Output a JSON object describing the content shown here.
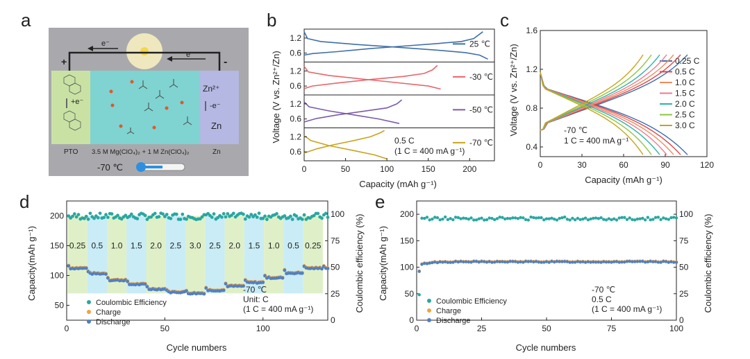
{
  "panels": {
    "a": {
      "letter": "a",
      "plus": "+",
      "minus": "-",
      "electron_top_left": "e⁻",
      "electron_top_right": "e⁻",
      "electron_left": "+e⁻",
      "electron_right": "-e⁻",
      "zn_ion": "Zn²⁺",
      "zn": "Zn",
      "label_pto": "PTO",
      "label_electrolyte": "3.5 M Mg(ClO₄)₂ + 1 M Zn(ClO₄)₂",
      "label_zn": "Zn",
      "temperature": "-70 ℃"
    },
    "b": {
      "letter": "b"
    },
    "c": {
      "letter": "c"
    },
    "d": {
      "letter": "d"
    },
    "e": {
      "letter": "e"
    }
  },
  "chart_data": [
    {
      "id": "b",
      "type": "line",
      "xlabel": "Capacity (mAh g⁻¹)",
      "ylabel": "Voltage (V vs. Zn²⁺/Zn)",
      "xlim": [
        0,
        230
      ],
      "xticks": [
        0,
        50,
        100,
        150,
        200
      ],
      "yticks": [
        "1.2",
        "0.6"
      ],
      "note_lines": [
        "0.5 C",
        "(1 C = 400 mA g⁻¹)"
      ],
      "series": [
        {
          "name": "25 ℃",
          "color": "#3e6fa8",
          "charge": [
            [
              0,
              0.52
            ],
            [
              10,
              0.58
            ],
            [
              40,
              0.66
            ],
            [
              80,
              0.78
            ],
            [
              120,
              0.88
            ],
            [
              160,
              0.98
            ],
            [
              190,
              1.06
            ],
            [
              205,
              1.18
            ],
            [
              216,
              1.45
            ]
          ],
          "discharge": [
            [
              0,
              1.45
            ],
            [
              4,
              1.18
            ],
            [
              20,
              1.06
            ],
            [
              60,
              0.95
            ],
            [
              110,
              0.84
            ],
            [
              160,
              0.72
            ],
            [
              195,
              0.62
            ],
            [
              212,
              0.52
            ],
            [
              222,
              0.36
            ]
          ]
        },
        {
          "name": "-30 ℃",
          "color": "#e8646a",
          "charge": [
            [
              0,
              0.5
            ],
            [
              10,
              0.6
            ],
            [
              40,
              0.72
            ],
            [
              80,
              0.86
            ],
            [
              120,
              0.98
            ],
            [
              145,
              1.1
            ],
            [
              155,
              1.24
            ],
            [
              161,
              1.42
            ]
          ],
          "discharge": [
            [
              0,
              1.38
            ],
            [
              5,
              1.16
            ],
            [
              30,
              1.02
            ],
            [
              70,
              0.88
            ],
            [
              110,
              0.74
            ],
            [
              150,
              0.6
            ],
            [
              165,
              0.48
            ]
          ]
        },
        {
          "name": "-50 ℃",
          "color": "#7a5aaa",
          "charge": [
            [
              0,
              0.48
            ],
            [
              15,
              0.62
            ],
            [
              40,
              0.76
            ],
            [
              70,
              0.9
            ],
            [
              100,
              1.04
            ],
            [
              112,
              1.2
            ],
            [
              118,
              1.36
            ]
          ],
          "discharge": [
            [
              0,
              1.28
            ],
            [
              6,
              1.08
            ],
            [
              30,
              0.92
            ],
            [
              60,
              0.76
            ],
            [
              90,
              0.6
            ],
            [
              115,
              0.42
            ]
          ]
        },
        {
          "name": "-70 ℃",
          "color": "#c9a21a",
          "charge": [
            [
              0,
              0.55
            ],
            [
              15,
              0.72
            ],
            [
              35,
              0.88
            ],
            [
              60,
              1.05
            ],
            [
              80,
              1.2
            ],
            [
              92,
              1.36
            ],
            [
              97,
              1.45
            ]
          ],
          "discharge": [
            [
              0,
              1.25
            ],
            [
              8,
              1.05
            ],
            [
              30,
              0.85
            ],
            [
              60,
              0.65
            ],
            [
              85,
              0.48
            ],
            [
              100,
              0.32
            ]
          ]
        }
      ]
    },
    {
      "id": "c",
      "type": "line",
      "xlabel": "Capacity (mAh g⁻¹)",
      "ylabel": "Voltage (V vs. Zn²⁺/Zn)",
      "xlim": [
        0,
        120
      ],
      "ylim": [
        0.3,
        1.6
      ],
      "xticks": [
        0,
        30,
        60,
        90,
        120
      ],
      "yticks": [
        0.4,
        0.8,
        1.2,
        1.6
      ],
      "note_lines": [
        "-70 ℃",
        "1 C = 400 mA g⁻¹"
      ],
      "series": [
        {
          "name": "0.25 C",
          "color": "#3b6fb0",
          "capacity": 106
        },
        {
          "name": "0.5 C",
          "color": "#d9474b",
          "capacity": 101
        },
        {
          "name": "1.0 C",
          "color": "#f08a5d",
          "capacity": 96
        },
        {
          "name": "1.5 C",
          "color": "#f27a8c",
          "capacity": 91
        },
        {
          "name": "2.0 C",
          "color": "#2bb3a8",
          "capacity": 86
        },
        {
          "name": "2.5 C",
          "color": "#8cc63f",
          "capacity": 80
        },
        {
          "name": "3.0 C",
          "color": "#c9a21a",
          "capacity": 74
        }
      ]
    },
    {
      "id": "d",
      "type": "scatter",
      "xlabel": "Cycle numbers",
      "ylabel": "Capacity(mAh g⁻¹)",
      "y2label": "Coulombic efficiency (%)",
      "xlim": [
        0,
        133
      ],
      "ylim": [
        25,
        225
      ],
      "y2lim": [
        0,
        112.5
      ],
      "xticks": [
        0,
        50,
        100
      ],
      "yticks": [
        50,
        100,
        150,
        200
      ],
      "y2ticks": [
        0,
        25,
        50,
        75,
        100
      ],
      "legend": [
        "Coulombic Efficiency",
        "Charge",
        "Discharge"
      ],
      "note_lines": [
        "-70 ℃",
        "Unit: C",
        "(1 C = 400 mA g⁻¹)"
      ],
      "rate_labels": [
        "0.25",
        "0.5",
        "1.0",
        "1.5",
        "2.0",
        "2.5",
        "3.0",
        "2.5",
        "2.0",
        "1.5",
        "1.0",
        "0.5",
        "0.25"
      ],
      "segment_capacity": [
        112,
        103,
        92,
        85,
        77,
        72,
        70,
        75,
        82,
        88,
        96,
        104,
        112
      ]
    },
    {
      "id": "e",
      "type": "scatter",
      "xlabel": "Cycle numbers",
      "ylabel": "Capacity(mAh g⁻¹)",
      "y2label": "Coulombic efficiency (%)",
      "xlim": [
        0,
        100
      ],
      "ylim": [
        0,
        225
      ],
      "y2lim": [
        0,
        112.5
      ],
      "xticks": [
        0,
        25,
        50,
        75,
        100
      ],
      "yticks": [
        0,
        50,
        100,
        150,
        200
      ],
      "y2ticks": [
        0,
        25,
        50,
        75,
        100
      ],
      "legend": [
        "Coulombic Efficiency",
        "Charge",
        "Discharge"
      ],
      "note_lines": [
        "-70 ℃",
        "0.5 C",
        "(1 C = 400 mA g⁻¹)"
      ],
      "capacity_plateau": 110,
      "ce_value": 96
    }
  ],
  "colors": {
    "ce": "#2aa7a0",
    "charge": "#f2a33a",
    "discharge": "#4f7fc4",
    "band_green": "#dff0c8",
    "band_blue": "#c9ecf6"
  }
}
